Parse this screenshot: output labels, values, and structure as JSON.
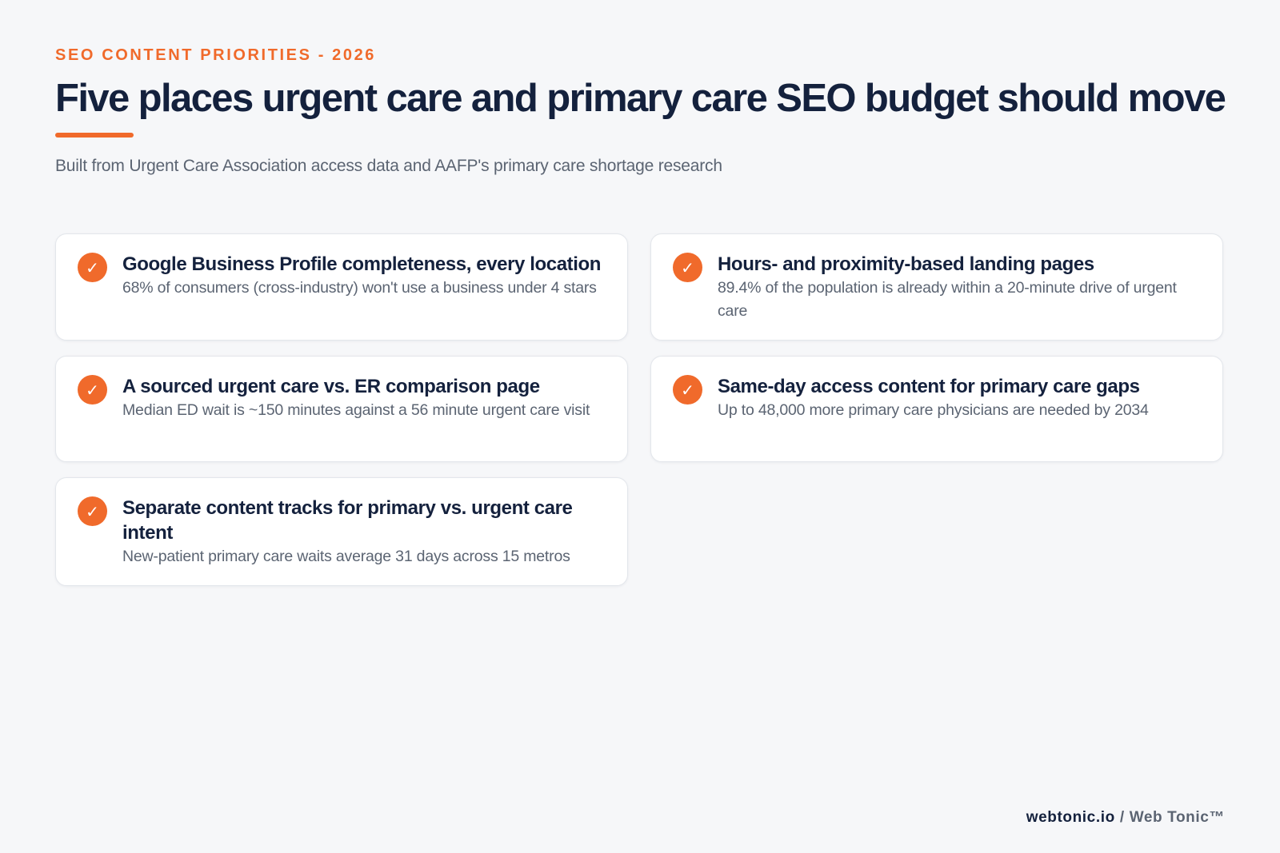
{
  "header": {
    "eyebrow": "SEO CONTENT PRIORITIES - 2026",
    "title": "Five places urgent care and primary care SEO budget should move",
    "subtitle": "Built from Urgent Care Association access data and AAFP's primary care shortage research"
  },
  "cards": [
    {
      "icon": "checkmark-icon",
      "title": "Google Business Profile completeness, every location",
      "text": "68% of consumers (cross-industry) won't use a business under 4 stars"
    },
    {
      "icon": "checkmark-icon",
      "title": "Hours- and proximity-based landing pages",
      "text": "89.4% of the population is already within a 20-minute drive of urgent care"
    },
    {
      "icon": "checkmark-icon",
      "title": "A sourced urgent care vs. ER comparison page",
      "text": "Median ED wait is ~150 minutes against a 56 minute urgent care visit"
    },
    {
      "icon": "checkmark-icon",
      "title": "Same-day access content for primary care gaps",
      "text": "Up to 48,000 more primary care physicians are needed by 2034"
    },
    {
      "icon": "checkmark-icon",
      "title": "Separate content tracks for primary vs. urgent care intent",
      "text": "New-patient primary care waits average 31 days across 15 metros"
    }
  ],
  "footer": {
    "domain": "webtonic.io",
    "separator": "/",
    "brand": "Web Tonic™"
  },
  "colors": {
    "accent": "#f06a2b",
    "heading": "#14213d",
    "muted": "#5b6472",
    "background": "#f6f7f9"
  }
}
